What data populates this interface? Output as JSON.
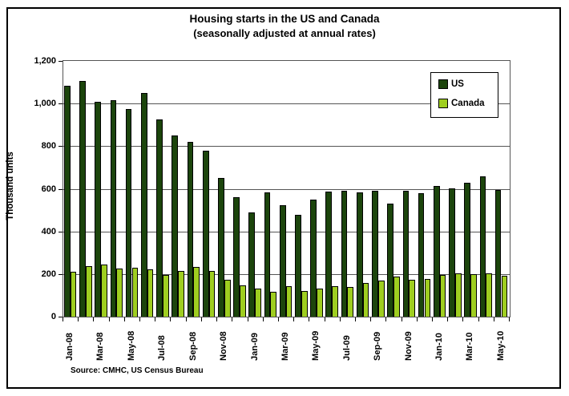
{
  "chart_data": {
    "type": "bar",
    "title": "Housing starts in the US and Canada",
    "subtitle": "(seasonally adjusted at annual rates)",
    "ylabel": "Thousand units",
    "xlabel": "",
    "ylim": [
      0,
      1200
    ],
    "ytick_interval": 200,
    "y_tick_labels": [
      "0",
      "200",
      "400",
      "600",
      "800",
      "1,000",
      "1,200"
    ],
    "grid": true,
    "legend_position": "top-right",
    "x_tick_label_every": 2,
    "categories": [
      "Jan-08",
      "Feb-08",
      "Mar-08",
      "Apr-08",
      "May-08",
      "Jun-08",
      "Jul-08",
      "Aug-08",
      "Sep-08",
      "Oct-08",
      "Nov-08",
      "Dec-08",
      "Jan-09",
      "Feb-09",
      "Mar-09",
      "Apr-09",
      "May-09",
      "Jun-09",
      "Jul-09",
      "Aug-09",
      "Sep-09",
      "Oct-09",
      "Nov-09",
      "Dec-09",
      "Jan-10",
      "Feb-10",
      "Mar-10",
      "Apr-10",
      "May-10"
    ],
    "series": [
      {
        "name": "US",
        "color": "#1c450c",
        "values": [
          1085,
          1105,
          1010,
          1015,
          975,
          1050,
          927,
          850,
          820,
          777,
          652,
          560,
          490,
          583,
          522,
          478,
          550,
          587,
          590,
          585,
          590,
          530,
          592,
          580,
          612,
          603,
          630,
          658,
          593
        ]
      },
      {
        "name": "Canada",
        "color": "#9fce20",
        "values": [
          210,
          237,
          245,
          226,
          230,
          223,
          196,
          214,
          232,
          216,
          172,
          148,
          131,
          116,
          145,
          119,
          130,
          145,
          138,
          158,
          168,
          190,
          175,
          178,
          195,
          203,
          200,
          205,
          193
        ]
      }
    ],
    "source_note": "Source: CMHC, US Census Bureau"
  }
}
